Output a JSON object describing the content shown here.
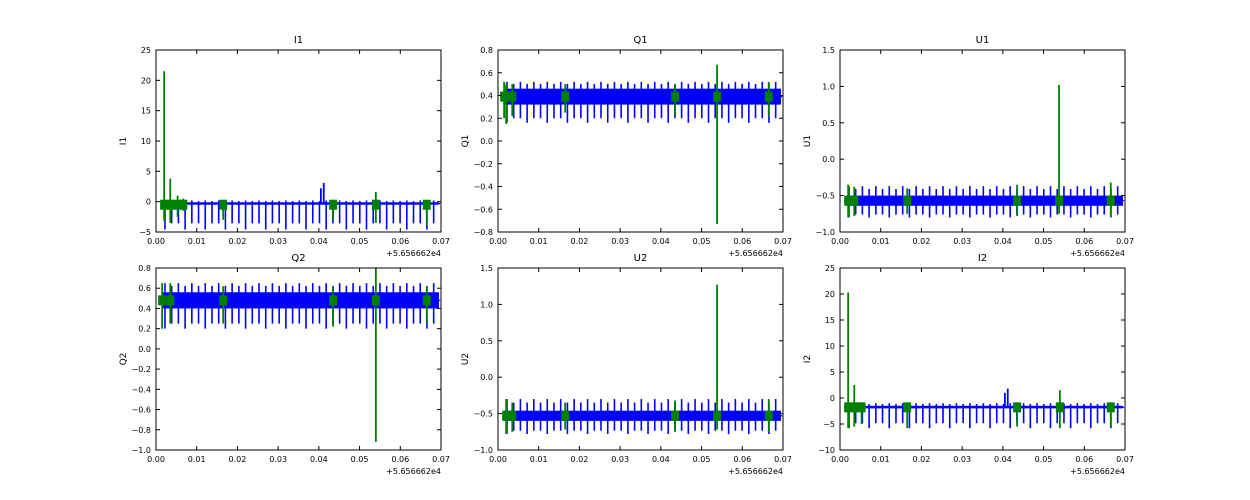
{
  "colors": {
    "series_blue": "#0000ff",
    "series_green": "#008000",
    "axes": "#000000",
    "background": "#ffffff"
  },
  "chart_data": [
    {
      "type": "line",
      "title": "I1",
      "ylabel": "I1",
      "xlabel": "",
      "offset_text": "+5.656662e4",
      "xlim": [
        0.0,
        0.07
      ],
      "ylim": [
        -5,
        25
      ],
      "xticks": [
        "0.00",
        "0.01",
        "0.02",
        "0.03",
        "0.04",
        "0.05",
        "0.06",
        "0.07"
      ],
      "yticks": [
        "−5",
        "0",
        "5",
        "10",
        "15",
        "20",
        "25"
      ],
      "xtick_values": [
        0,
        0.01,
        0.02,
        0.03,
        0.04,
        0.05,
        0.06,
        0.07
      ],
      "ytick_values": [
        -5,
        0,
        5,
        10,
        15,
        20,
        25
      ],
      "series": [
        {
          "name": "blue",
          "color": "#0000ff",
          "baseline": -0.3,
          "band": [
            -0.5,
            -0.1
          ],
          "spike_period": 0.00165,
          "spike_min": -4.6,
          "spike_max": 0.2,
          "spikes": [
            [
              0.0405,
              -0.3,
              2.2
            ],
            [
              0.0412,
              -0.3,
              3.1
            ]
          ]
        },
        {
          "name": "green",
          "color": "#008000",
          "baseline": -0.5,
          "spikes": [
            [
              0.002,
              -3.2,
              21.5
            ],
            [
              0.0035,
              -3.5,
              3.8
            ],
            [
              0.0053,
              -2.5,
              1.0
            ],
            [
              0.0067,
              -1.5,
              0.5
            ],
            [
              0.0165,
              -3.0,
              -0.5
            ],
            [
              0.0435,
              -3.0,
              0.2
            ],
            [
              0.054,
              -3.5,
              1.6
            ],
            [
              0.0665,
              -4.0,
              -0.2
            ]
          ]
        }
      ]
    },
    {
      "type": "line",
      "title": "Q1",
      "ylabel": "Q1",
      "xlabel": "",
      "offset_text": "+5.656662e4",
      "xlim": [
        0.0,
        0.07
      ],
      "ylim": [
        -0.8,
        0.8
      ],
      "xticks": [
        "0.00",
        "0.01",
        "0.02",
        "0.03",
        "0.04",
        "0.05",
        "0.06",
        "0.07"
      ],
      "yticks": [
        "−0.8",
        "−0.6",
        "−0.4",
        "−0.2",
        "0.0",
        "0.2",
        "0.4",
        "0.6",
        "0.8"
      ],
      "xtick_values": [
        0,
        0.01,
        0.02,
        0.03,
        0.04,
        0.05,
        0.06,
        0.07
      ],
      "ytick_values": [
        -0.8,
        -0.6,
        -0.4,
        -0.2,
        0,
        0.2,
        0.4,
        0.6,
        0.8
      ],
      "series": [
        {
          "name": "blue",
          "color": "#0000ff",
          "baseline": 0.39,
          "band": [
            0.32,
            0.46
          ],
          "spike_period": 0.00165,
          "spike_min": 0.16,
          "spike_max": 0.52,
          "spikes": []
        },
        {
          "name": "green",
          "color": "#008000",
          "baseline": 0.39,
          "spikes": [
            [
              0.0015,
              0.2,
              0.52
            ],
            [
              0.002,
              0.15,
              0.5
            ],
            [
              0.0035,
              0.22,
              0.5
            ],
            [
              0.0165,
              0.25,
              0.5
            ],
            [
              0.0435,
              0.22,
              0.5
            ],
            [
              0.0538,
              -0.73,
              0.67
            ],
            [
              0.0665,
              0.22,
              0.52
            ]
          ]
        }
      ]
    },
    {
      "type": "line",
      "title": "U1",
      "ylabel": "U1",
      "xlabel": "",
      "offset_text": "+5.656662e4",
      "xlim": [
        0.0,
        0.07
      ],
      "ylim": [
        -1.0,
        1.5
      ],
      "xticks": [
        "0.00",
        "0.01",
        "0.02",
        "0.03",
        "0.04",
        "0.05",
        "0.06",
        "0.07"
      ],
      "yticks": [
        "−1.0",
        "−0.5",
        "0.0",
        "0.5",
        "1.0",
        "1.5"
      ],
      "xtick_values": [
        0,
        0.01,
        0.02,
        0.03,
        0.04,
        0.05,
        0.06,
        0.07
      ],
      "ytick_values": [
        -1,
        -0.5,
        0,
        0.5,
        1,
        1.5
      ],
      "series": [
        {
          "name": "blue",
          "color": "#0000ff",
          "baseline": -0.57,
          "band": [
            -0.64,
            -0.5
          ],
          "spike_period": 0.00165,
          "spike_min": -0.8,
          "spike_max": -0.37,
          "spikes": []
        },
        {
          "name": "green",
          "color": "#008000",
          "baseline": -0.57,
          "spikes": [
            [
              0.002,
              -0.8,
              -0.35
            ],
            [
              0.0035,
              -0.78,
              -0.38
            ],
            [
              0.0165,
              -0.75,
              -0.4
            ],
            [
              0.0435,
              -0.78,
              -0.35
            ],
            [
              0.0538,
              -0.75,
              1.02
            ],
            [
              0.0665,
              -0.78,
              -0.32
            ]
          ]
        }
      ]
    },
    {
      "type": "line",
      "title": "Q2",
      "ylabel": "Q2",
      "xlabel": "",
      "offset_text": "+5.656662e4",
      "xlim": [
        0.0,
        0.07
      ],
      "ylim": [
        -1.0,
        0.8
      ],
      "xticks": [
        "0.00",
        "0.01",
        "0.02",
        "0.03",
        "0.04",
        "0.05",
        "0.06",
        "0.07"
      ],
      "yticks": [
        "−1.0",
        "−0.8",
        "−0.6",
        "−0.4",
        "−0.2",
        "0.0",
        "0.2",
        "0.4",
        "0.6",
        "0.8"
      ],
      "xtick_values": [
        0,
        0.01,
        0.02,
        0.03,
        0.04,
        0.05,
        0.06,
        0.07
      ],
      "ytick_values": [
        -1,
        -0.8,
        -0.6,
        -0.4,
        -0.2,
        0,
        0.2,
        0.4,
        0.6,
        0.8
      ],
      "series": [
        {
          "name": "blue",
          "color": "#0000ff",
          "baseline": 0.48,
          "band": [
            0.4,
            0.56
          ],
          "spike_period": 0.00165,
          "spike_min": 0.2,
          "spike_max": 0.65,
          "spikes": []
        },
        {
          "name": "green",
          "color": "#008000",
          "baseline": 0.48,
          "spikes": [
            [
              0.0015,
              0.2,
              0.65
            ],
            [
              0.0035,
              0.25,
              0.65
            ],
            [
              0.0165,
              0.25,
              0.62
            ],
            [
              0.0435,
              0.22,
              0.62
            ],
            [
              0.054,
              -0.92,
              0.8
            ],
            [
              0.0665,
              0.25,
              0.62
            ]
          ]
        }
      ]
    },
    {
      "type": "line",
      "title": "U2",
      "ylabel": "U2",
      "xlabel": "",
      "offset_text": "+5.656662e4",
      "xlim": [
        0.0,
        0.07
      ],
      "ylim": [
        -1.0,
        1.5
      ],
      "xticks": [
        "0.00",
        "0.01",
        "0.02",
        "0.03",
        "0.04",
        "0.05",
        "0.06",
        "0.07"
      ],
      "yticks": [
        "−1.0",
        "−0.5",
        "0.0",
        "0.5",
        "1.0",
        "1.5"
      ],
      "xtick_values": [
        0,
        0.01,
        0.02,
        0.03,
        0.04,
        0.05,
        0.06,
        0.07
      ],
      "ytick_values": [
        -1,
        -0.5,
        0,
        0.5,
        1,
        1.5
      ],
      "series": [
        {
          "name": "blue",
          "color": "#0000ff",
          "baseline": -0.53,
          "band": [
            -0.6,
            -0.46
          ],
          "spike_period": 0.00165,
          "spike_min": -0.78,
          "spike_max": -0.3,
          "spikes": []
        },
        {
          "name": "green",
          "color": "#008000",
          "baseline": -0.53,
          "spikes": [
            [
              0.002,
              -0.78,
              -0.3
            ],
            [
              0.0035,
              -0.75,
              -0.35
            ],
            [
              0.0165,
              -0.72,
              -0.35
            ],
            [
              0.0435,
              -0.75,
              -0.32
            ],
            [
              0.0538,
              -0.72,
              1.27
            ],
            [
              0.0665,
              -0.75,
              -0.3
            ]
          ]
        }
      ]
    },
    {
      "type": "line",
      "title": "I2",
      "ylabel": "I2",
      "xlabel": "",
      "offset_text": "+5.656662e4",
      "xlim": [
        0.0,
        0.07
      ],
      "ylim": [
        -10,
        25
      ],
      "xticks": [
        "0.00",
        "0.01",
        "0.02",
        "0.03",
        "0.04",
        "0.05",
        "0.06",
        "0.07"
      ],
      "yticks": [
        "−10",
        "−5",
        "0",
        "5",
        "10",
        "15",
        "20",
        "25"
      ],
      "xtick_values": [
        0,
        0.01,
        0.02,
        0.03,
        0.04,
        0.05,
        0.06,
        0.07
      ],
      "ytick_values": [
        -10,
        -5,
        0,
        5,
        10,
        15,
        20,
        25
      ],
      "series": [
        {
          "name": "blue",
          "color": "#0000ff",
          "baseline": -1.8,
          "band": [
            -2.0,
            -1.5
          ],
          "spike_period": 0.00165,
          "spike_min": -5.8,
          "spike_max": -1.0,
          "spikes": [
            [
              0.0405,
              -1.8,
              1.0
            ],
            [
              0.0412,
              -1.8,
              1.8
            ]
          ]
        },
        {
          "name": "green",
          "color": "#008000",
          "baseline": -1.8,
          "spikes": [
            [
              0.002,
              -5.8,
              20.3
            ],
            [
              0.0035,
              -5.5,
              2.5
            ],
            [
              0.0053,
              -5.0,
              -0.8
            ],
            [
              0.0165,
              -5.8,
              -1.5
            ],
            [
              0.0435,
              -5.5,
              -1.0
            ],
            [
              0.054,
              -5.8,
              1.5
            ],
            [
              0.0665,
              -5.5,
              -1.2
            ]
          ]
        }
      ]
    }
  ]
}
